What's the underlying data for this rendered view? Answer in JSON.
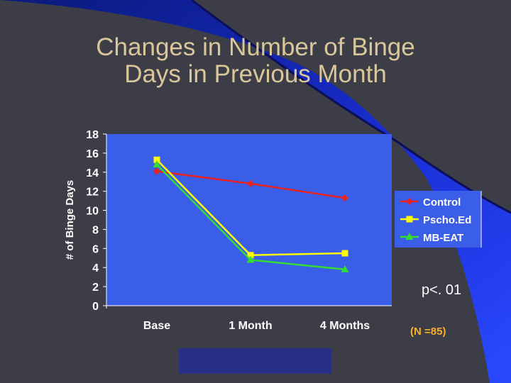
{
  "slide": {
    "title_line1": "Changes in Number of Binge",
    "title_line2": "Days in Previous Month",
    "p_value": "p<. 01",
    "n_note": "(N =85)"
  },
  "colors": {
    "background": "#3d3d47",
    "plot_area": "#3b5ee8",
    "title": "#d9c79a",
    "control": "#e8231f",
    "psychoed": "#ffff00",
    "mbeat": "#33dd33"
  },
  "chart_data": {
    "type": "line",
    "title": "",
    "xlabel": "",
    "ylabel": "# of Binge Days",
    "ylim": [
      0,
      18
    ],
    "yticks": [
      0,
      2,
      4,
      6,
      8,
      10,
      12,
      14,
      16,
      18
    ],
    "categories": [
      "Base",
      "1 Month",
      "4 Months"
    ],
    "legend_position": "right",
    "series": [
      {
        "name": "Control",
        "values": [
          14.1,
          12.8,
          11.3
        ],
        "color": "#e8231f",
        "marker": "diamond"
      },
      {
        "name": "Pscho.Ed",
        "values": [
          15.3,
          5.3,
          5.5
        ],
        "color": "#ffff00",
        "marker": "square"
      },
      {
        "name": "MB-EAT",
        "values": [
          14.8,
          4.8,
          3.8
        ],
        "color": "#33dd33",
        "marker": "triangle"
      }
    ]
  }
}
